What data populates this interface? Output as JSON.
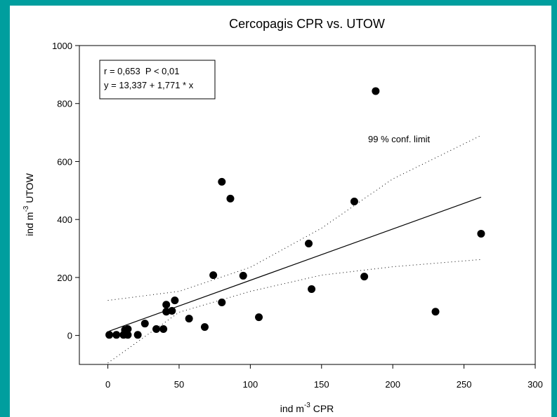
{
  "chart_data": {
    "type": "scatter",
    "title": "Cercopagis CPR vs. UTOW",
    "x_label": {
      "prefix": "ind m",
      "sup": "-3",
      "suffix": " CPR"
    },
    "y_label": {
      "prefix": "ind m",
      "sup": "-3",
      "suffix": " UTOW"
    },
    "annotations": [
      "r = 0,653  P < 0,01",
      "y = 13,337 + 1,771 * x"
    ],
    "x": [
      1,
      6,
      11,
      14,
      12,
      14,
      21,
      26,
      34,
      39,
      41,
      41,
      45,
      47,
      57,
      68,
      74,
      80,
      80,
      86,
      95,
      106,
      141,
      143,
      173,
      180,
      188,
      230,
      262
    ],
    "values": [
      2,
      2,
      2,
      2,
      19,
      22,
      2,
      41,
      22,
      22,
      106,
      82,
      85,
      121,
      58,
      29,
      208,
      114,
      530,
      472,
      206,
      63,
      317,
      160,
      462,
      203,
      843,
      82,
      351
    ],
    "color": "#000000",
    "fit": {
      "x": [
        1,
        262
      ],
      "values": [
        15,
        477
      ]
    },
    "confidence": {
      "label": "99 % conf. limit",
      "x": [
        0,
        50,
        100,
        150,
        200,
        262
      ],
      "upper": [
        121,
        152,
        235,
        370,
        540,
        690
      ],
      "lower": [
        -95,
        80,
        152,
        208,
        237,
        262
      ]
    },
    "xlim": [
      -20,
      300
    ],
    "ylim": [
      -100,
      1000
    ],
    "xticks": [
      0,
      50,
      100,
      150,
      200,
      250,
      300
    ],
    "yticks": [
      0,
      200,
      400,
      600,
      800,
      1000
    ]
  }
}
